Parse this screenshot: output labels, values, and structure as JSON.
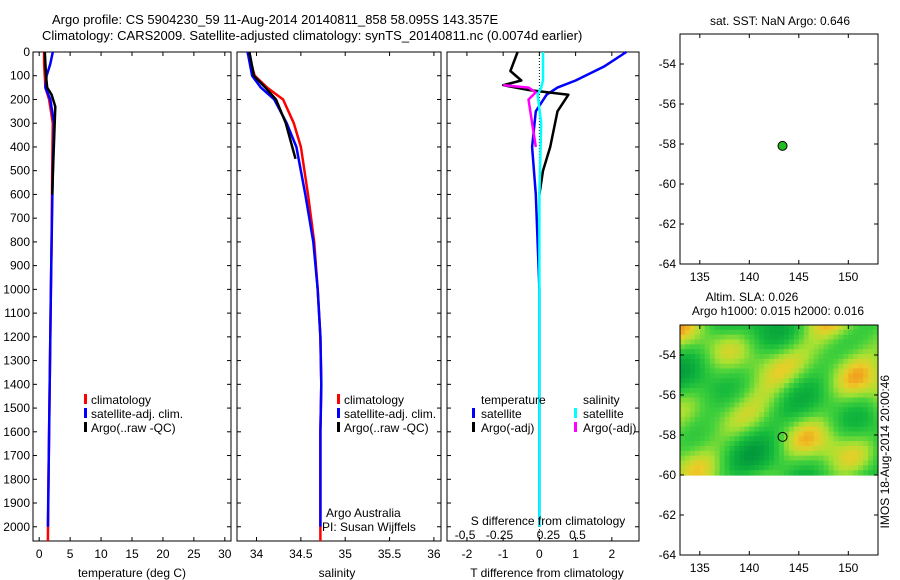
{
  "chart_data": [
    {
      "id": "temperature",
      "type": "line",
      "xlabel": "temperature (deg C)",
      "ylabel": "",
      "xlim": [
        -1,
        31
      ],
      "ylim": [
        2060,
        0
      ],
      "xticks": [
        0,
        5,
        10,
        15,
        20,
        25,
        30
      ],
      "yticks": [
        0,
        100,
        200,
        300,
        400,
        500,
        600,
        700,
        800,
        900,
        1000,
        1100,
        1200,
        1300,
        1400,
        1500,
        1600,
        1700,
        1800,
        1900,
        2000
      ],
      "legend": [
        "climatology",
        "satellite-adj. clim.",
        "Argo(..raw -QC)"
      ],
      "series": [
        {
          "name": "climatology",
          "color": "#ff0000",
          "x": [
            0.8,
            0.8,
            0.9,
            1.0,
            1.6,
            2.2,
            2.1,
            2.0,
            1.9,
            1.8,
            1.7,
            1.6,
            1.5,
            1.4
          ],
          "y": [
            0,
            50,
            100,
            150,
            200,
            300,
            500,
            800,
            1000,
            1200,
            1400,
            1600,
            1800,
            2060
          ]
        },
        {
          "name": "satellite-adj. clim.",
          "color": "#0000ff",
          "x": [
            2.2,
            1.8,
            1.2,
            1.0,
            1.8,
            2.4,
            2.2,
            2.0,
            1.9,
            1.8,
            1.7,
            1.6,
            1.5,
            1.4
          ],
          "y": [
            0,
            50,
            100,
            150,
            200,
            300,
            500,
            800,
            1000,
            1200,
            1400,
            1600,
            1800,
            2000
          ]
        },
        {
          "name": "Argo(..raw -QC)",
          "color": "#000000",
          "x": [
            0.9,
            1.1,
            1.3,
            2.0,
            2.6,
            2.5,
            2.3,
            2.1
          ],
          "y": [
            0,
            100,
            150,
            180,
            230,
            300,
            450,
            600
          ]
        }
      ]
    },
    {
      "id": "salinity",
      "type": "line",
      "xlabel": "salinity",
      "xlim": [
        33.78,
        36.08
      ],
      "ylim": [
        2060,
        0
      ],
      "xticks": [
        34,
        34.5,
        35,
        35.5,
        36
      ],
      "legend": [
        "climatology",
        "satellite-adj. clim.",
        "Argo(..raw -QC)"
      ],
      "annotation": [
        "Argo Australia",
        "PI: Susan Wijffels"
      ],
      "series": [
        {
          "name": "climatology",
          "color": "#ff0000",
          "x": [
            33.9,
            33.98,
            34.12,
            34.3,
            34.42,
            34.5,
            34.58,
            34.65,
            34.69,
            34.72,
            34.73,
            34.72,
            34.72
          ],
          "y": [
            0,
            100,
            150,
            200,
            300,
            400,
            600,
            800,
            1000,
            1200,
            1400,
            1600,
            2060
          ]
        },
        {
          "name": "satellite-adj. clim.",
          "color": "#0000ff",
          "x": [
            33.9,
            33.95,
            34.05,
            34.2,
            34.34,
            34.45,
            34.55,
            34.64,
            34.69,
            34.72,
            34.73,
            34.72,
            34.72
          ],
          "y": [
            0,
            100,
            150,
            200,
            300,
            400,
            600,
            800,
            1000,
            1200,
            1400,
            1600,
            2000
          ]
        },
        {
          "name": "Argo(..raw -QC)",
          "color": "#000000",
          "x": [
            33.92,
            33.97,
            34.1,
            34.22,
            34.33,
            34.44
          ],
          "y": [
            0,
            100,
            150,
            200,
            300,
            450
          ]
        }
      ]
    },
    {
      "id": "difference",
      "type": "line",
      "xlabel": "T difference from climatology",
      "x2label": "S difference from climatology",
      "xlim": [
        -2.55,
        2.75
      ],
      "ylim": [
        2060,
        0
      ],
      "xticks": [
        -2,
        -1,
        0,
        1,
        2
      ],
      "x2ticks_pos": [
        -2.05,
        -1.1,
        0.25,
        1.05
      ],
      "x2ticks": [
        "-0.5",
        "-0.25",
        "0.25",
        "0.5"
      ],
      "legend_left": {
        "title": "temperature",
        "items": [
          "satellite",
          "Argo(-adj)"
        ]
      },
      "legend_right": {
        "title": "salinity",
        "items": [
          "satellite",
          "Argo(-adj)"
        ]
      },
      "series": [
        {
          "name": "temperature satellite",
          "color": "#0000ff",
          "x": [
            2.4,
            1.8,
            1.0,
            0.5,
            0.2,
            -0.1,
            -0.2,
            -0.1,
            0,
            0,
            0
          ],
          "y": [
            0,
            60,
            120,
            150,
            180,
            250,
            400,
            600,
            1000,
            1500,
            2000
          ]
        },
        {
          "name": "temperature Argo(-adj)",
          "color": "#000000",
          "x": [
            -0.6,
            -0.8,
            -0.5,
            -1.0,
            -0.3,
            0.8,
            0.5,
            0.3,
            0.1,
            0
          ],
          "y": [
            0,
            80,
            120,
            140,
            160,
            180,
            250,
            400,
            500,
            600
          ]
        },
        {
          "name": "salinity satellite",
          "color": "#00ffff",
          "x": [
            0.1,
            0.1,
            0.05,
            -0.05,
            0.05,
            0,
            0
          ],
          "y": [
            0,
            120,
            150,
            180,
            300,
            600,
            2000
          ]
        },
        {
          "name": "salinity Argo(-adj)",
          "color": "#ff00ff",
          "x": [
            -1.0,
            -0.3,
            -0.1,
            -0.3,
            -0.1
          ],
          "y": [
            140,
            150,
            170,
            200,
            400
          ]
        }
      ]
    },
    {
      "id": "sst-map",
      "type": "scatter",
      "title": "sat. SST: NaN Argo: 0.646",
      "xlim": [
        133,
        153
      ],
      "ylim": [
        -64,
        -52.5
      ],
      "xticks": [
        135,
        140,
        145,
        150
      ],
      "yticks": [
        -54,
        -56,
        -58,
        -60,
        -62,
        -64
      ],
      "point": {
        "lon": 143.357,
        "lat": -58.095,
        "color": "#22bb22"
      }
    },
    {
      "id": "sla-map",
      "type": "heatmap",
      "title": [
        "Altim. SLA: 0.026",
        "Argo h1000: 0.015 h2000: 0.016"
      ],
      "xlim": [
        133,
        153
      ],
      "ylim": [
        -64,
        -52.5
      ],
      "data_ylim": [
        -60,
        -52.5
      ],
      "xticks": [
        135,
        140,
        145,
        150
      ],
      "yticks": [
        -54,
        -56,
        -58,
        -60,
        -62,
        -64
      ],
      "point": {
        "lon": 143.357,
        "lat": -58.095
      },
      "side_text": "IMOS 18-Aug-2014 20:00:46"
    }
  ],
  "header": {
    "line1": "Argo profile: CS 5904230_59 11-Aug-2014 20140811_858 58.095S 143.357E",
    "line2": "Climatology: CARS2009. Satellite-adjusted climatology: synTS_20140811.nc (0.0074d earlier)"
  }
}
